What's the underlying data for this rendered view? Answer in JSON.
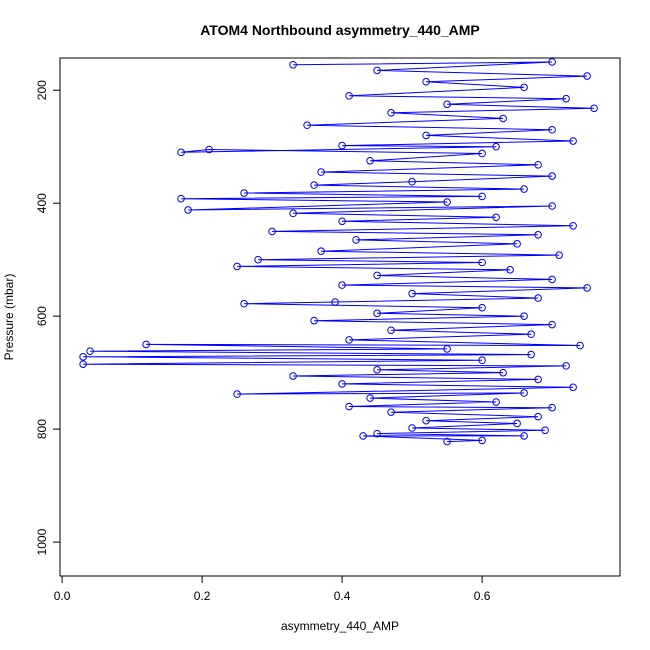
{
  "chart_data": {
    "type": "line",
    "title": "ATOM4 Northbound asymmetry_440_AMP",
    "x_label": "asymmetry_440_AMP",
    "y_label": "Pressure (mbar)",
    "xlim": [
      -0.003,
      0.797
    ],
    "xticks": [
      {
        "value": 0,
        "label": "0.0"
      },
      0.2,
      0.4,
      0.6
    ],
    "ylim": [
      143,
      1060
    ],
    "y_reversed": true,
    "yticks": [
      200,
      400,
      600,
      800,
      1000
    ],
    "markers": true,
    "x": [
      0.33,
      0.7,
      0.45,
      0.75,
      0.52,
      0.66,
      0.41,
      0.72,
      0.55,
      0.76,
      0.47,
      0.63,
      0.35,
      0.7,
      0.52,
      0.73,
      0.4,
      0.62,
      0.17,
      0.21,
      0.6,
      0.44,
      0.68,
      0.37,
      0.7,
      0.5,
      0.36,
      0.66,
      0.26,
      0.6,
      0.17,
      0.55,
      0.18,
      0.7,
      0.33,
      0.62,
      0.4,
      0.73,
      0.3,
      0.68,
      0.42,
      0.65,
      0.37,
      0.71,
      0.28,
      0.6,
      0.25,
      0.64,
      0.45,
      0.7,
      0.4,
      0.75,
      0.5,
      0.68,
      0.39,
      0.26,
      0.6,
      0.45,
      0.66,
      0.36,
      0.7,
      0.47,
      0.67,
      0.41,
      0.74,
      0.12,
      0.55,
      0.04,
      0.67,
      0.03,
      0.6,
      0.03,
      0.72,
      0.45,
      0.63,
      0.33,
      0.68,
      0.4,
      0.73,
      0.25,
      0.66,
      0.44,
      0.62,
      0.41,
      0.7,
      0.47,
      0.68,
      0.52,
      0.65,
      0.5,
      0.69,
      0.45,
      0.66,
      0.43,
      0.6,
      0.55
    ],
    "series": [
      {
        "color": "#0000ff",
        "values": [
          155,
          150,
          165,
          175,
          185,
          195,
          210,
          215,
          225,
          232,
          240,
          250,
          262,
          270,
          280,
          290,
          298,
          300,
          310,
          305,
          312,
          325,
          332,
          345,
          352,
          362,
          368,
          375,
          382,
          388,
          392,
          398,
          412,
          405,
          418,
          425,
          432,
          440,
          450,
          456,
          465,
          472,
          485,
          492,
          500,
          505,
          512,
          518,
          528,
          535,
          545,
          550,
          560,
          568,
          575,
          578,
          585,
          595,
          600,
          608,
          615,
          625,
          632,
          642,
          652,
          650,
          658,
          662,
          668,
          672,
          678,
          685,
          688,
          695,
          700,
          706,
          712,
          720,
          726,
          738,
          736,
          745,
          752,
          760,
          762,
          770,
          778,
          785,
          790,
          798,
          802,
          808,
          812,
          812,
          820,
          822
        ]
      }
    ]
  }
}
